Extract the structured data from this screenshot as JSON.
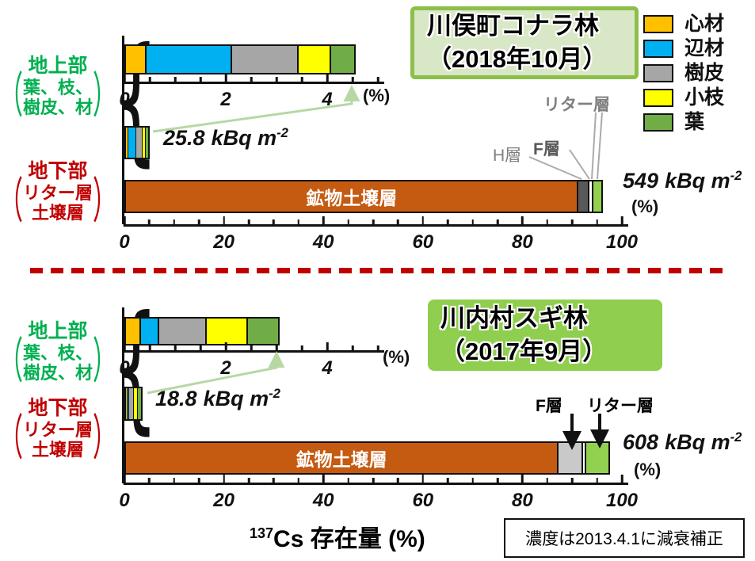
{
  "legend": {
    "items": [
      {
        "label": "心材",
        "color": "#FFC000"
      },
      {
        "label": "辺材",
        "color": "#00B0F0"
      },
      {
        "label": "樹皮",
        "color": "#A6A6A6"
      },
      {
        "label": "小枝",
        "color": "#FFFF00"
      },
      {
        "label": "葉",
        "color": "#70AD47"
      }
    ]
  },
  "footer": {
    "xaxis_title_isotope": "137",
    "xaxis_title_element": "Cs",
    "xaxis_title_rest": " 存在量 (%)",
    "note": "濃度は2013.4.1に減衰補正"
  },
  "colors": {
    "soil": "#C55A11",
    "litter_green": "#92D050",
    "divider_red": "#C00000",
    "label_green": "#00B050",
    "label_red": "#C00000",
    "arrow_green": "#B7D8A5",
    "title1_bg": "#D8E8C6",
    "title1_border": "#8CBF4A",
    "title2_bg": "#8FCE4E"
  },
  "chart_data": [
    {
      "type": "bar",
      "site": "川俣町コナラ林",
      "date": "2018年10月",
      "title_lines": [
        "川俣町コナラ林",
        "（2018年10月）"
      ],
      "above_ground": {
        "label_head": "地上部",
        "label_sub": [
          "葉、枝、",
          "樹皮、材"
        ],
        "total": "25.8",
        "unit": "kBq m",
        "exp": "-2",
        "total_percent": 4.5,
        "axis": {
          "min": 0,
          "max": 5,
          "tick_step": 0.5,
          "labels": [
            0,
            2,
            4
          ],
          "unit": "(%)"
        },
        "segments": [
          {
            "name": "心材",
            "value": 0.4,
            "color": "#FFC000"
          },
          {
            "name": "辺材",
            "value": 1.7,
            "color": "#00B0F0"
          },
          {
            "name": "樹皮",
            "value": 1.3,
            "color": "#A6A6A6"
          },
          {
            "name": "小枝",
            "value": 0.65,
            "color": "#FFFF00"
          },
          {
            "name": "葉",
            "value": 0.45,
            "color": "#70AD47"
          }
        ]
      },
      "below_ground": {
        "label_head": "地下部",
        "label_sub": [
          "リター層",
          "土壌層"
        ],
        "total": "549",
        "unit": "kBq m",
        "exp": "-2",
        "axis": {
          "min": 0,
          "max": 100,
          "tick_step": 5,
          "labels": [
            0,
            20,
            40,
            60,
            80,
            100
          ],
          "unit": "(%)"
        },
        "segments": [
          {
            "name": "鉱物土壌層",
            "value": 91,
            "color": "#C55A11",
            "text": "鉱物土壌層"
          },
          {
            "name": "H層",
            "value": 2.2,
            "color": "#595959"
          },
          {
            "name": "F層",
            "value": 0.8,
            "color": "#FFFFFF"
          },
          {
            "name": "リター層",
            "value": 1.5,
            "color": "#92D050"
          }
        ],
        "layer_labels": [
          "リター層",
          "F層",
          "H層"
        ]
      }
    },
    {
      "type": "bar",
      "site": "川内村スギ林",
      "date": "2017年9月",
      "title_lines": [
        "川内村スギ林",
        "（2017年9月）"
      ],
      "above_ground": {
        "label_head": "地上部",
        "label_sub": [
          "葉、枝、",
          "樹皮、材"
        ],
        "total": "18.8",
        "unit": "kBq m",
        "exp": "-2",
        "total_percent": 3.0,
        "axis": {
          "min": 0,
          "max": 5,
          "tick_step": 0.5,
          "labels": [
            0,
            2,
            4
          ],
          "unit": "(%)"
        },
        "segments": [
          {
            "name": "心材",
            "value": 0.3,
            "color": "#FFC000"
          },
          {
            "name": "辺材",
            "value": 0.35,
            "color": "#00B0F0"
          },
          {
            "name": "樹皮",
            "value": 0.95,
            "color": "#A6A6A6"
          },
          {
            "name": "小枝",
            "value": 0.8,
            "color": "#FFFF00"
          },
          {
            "name": "葉",
            "value": 0.6,
            "color": "#70AD47"
          }
        ]
      },
      "below_ground": {
        "label_head": "地下部",
        "label_sub": [
          "リター層",
          "土壌層"
        ],
        "total": "608",
        "unit": "kBq m",
        "exp": "-2",
        "axis": {
          "min": 0,
          "max": 100,
          "tick_step": 5,
          "labels": [
            0,
            20,
            40,
            60,
            80,
            100
          ],
          "unit": "(%)"
        },
        "segments": [
          {
            "name": "鉱物土壌層",
            "value": 87,
            "color": "#C55A11",
            "text": "鉱物土壌層"
          },
          {
            "name": "F層",
            "value": 4.9,
            "color": "#C9C9C9"
          },
          {
            "name": "隙間",
            "value": 0.6,
            "color": "#FFFFFF"
          },
          {
            "name": "リター層",
            "value": 4.5,
            "color": "#92D050"
          }
        ],
        "layer_labels": [
          "F層",
          "リター層"
        ]
      }
    }
  ]
}
